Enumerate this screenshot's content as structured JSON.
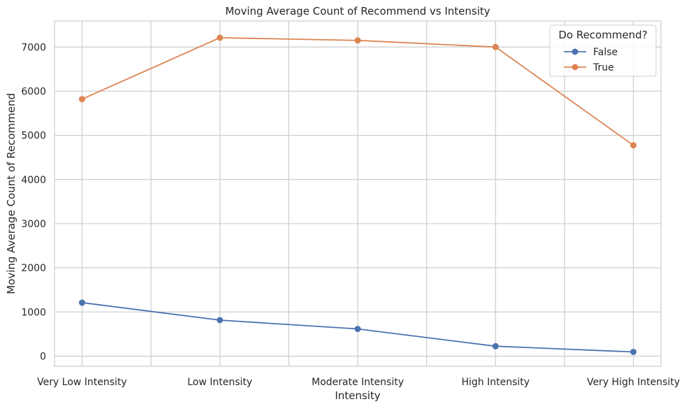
{
  "chart_data": {
    "type": "line",
    "title": "Moving Average Count of Recommend vs Intensity",
    "xlabel": "Intensity",
    "ylabel": "Moving Average Count of Recommend",
    "categories": [
      "Very Low Intensity",
      "Low Intensity",
      "Moderate Intensity",
      "High Intensity",
      "Very High Intensity"
    ],
    "ylim": [
      -230,
      7590
    ],
    "yticks": [
      0,
      1000,
      2000,
      3000,
      4000,
      5000,
      6000,
      7000
    ],
    "ytick_labels": [
      "0",
      "1000",
      "2000",
      "3000",
      "4000",
      "5000",
      "6000",
      "7000"
    ],
    "grid": true,
    "legend": {
      "title": "Do Recommend?",
      "placement": "top-right"
    },
    "series": [
      {
        "name": "False",
        "color": "#4c72b0",
        "values": [
          1210,
          815,
          615,
          225,
          95
        ]
      },
      {
        "name": "True",
        "color": "#dd8452",
        "values": [
          5820,
          7210,
          7150,
          7000,
          4775
        ]
      }
    ]
  }
}
